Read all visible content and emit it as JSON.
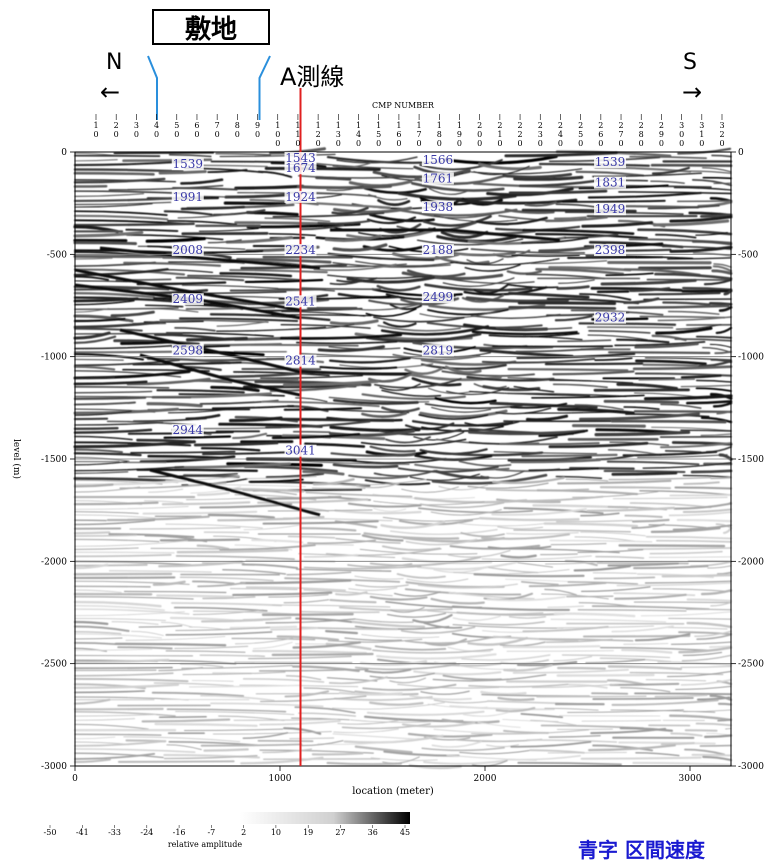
{
  "annotations": {
    "site_label": "敷地",
    "line_label": "A測線",
    "north_label": "N",
    "south_label": "S",
    "north_arrow": "←",
    "south_arrow": "→",
    "caption": "青字 区間速度"
  },
  "colors": {
    "site_marker": "#2a8fdc",
    "line_marker": "#e02020",
    "velocity_text": "#3a3aa8"
  },
  "chart_data": {
    "type": "heatmap",
    "top_axis_title": "CMP NUMBER",
    "top_axis_ticks": [
      "10",
      "20",
      "30",
      "40",
      "50",
      "60",
      "70",
      "80",
      "90",
      "100",
      "110",
      "120",
      "130",
      "140",
      "150",
      "160",
      "170",
      "180",
      "190",
      "200",
      "210",
      "220",
      "230",
      "240",
      "250",
      "260",
      "270",
      "280",
      "290",
      "300",
      "310",
      "320"
    ],
    "xlabel": "location (meter)",
    "ylabel": "level (m)",
    "xlim": [
      0,
      3200
    ],
    "ylim": [
      -3000,
      0
    ],
    "x_ticks": [
      0,
      1000,
      2000,
      3000
    ],
    "y_ticks": [
      0,
      -500,
      -1000,
      -1500,
      -2000,
      -2500,
      -3000
    ],
    "grid": true,
    "site_range_m": [
      400,
      900
    ],
    "line_position_m": 1100,
    "interval_velocities": [
      {
        "x": 550,
        "y": -30,
        "label": "1539"
      },
      {
        "x": 1100,
        "y": 0,
        "label": "1543"
      },
      {
        "x": 1100,
        "y": -50,
        "label": "1674"
      },
      {
        "x": 1770,
        "y": -10,
        "label": "1566"
      },
      {
        "x": 2610,
        "y": -20,
        "label": "1539"
      },
      {
        "x": 1770,
        "y": -100,
        "label": "1761"
      },
      {
        "x": 2610,
        "y": -120,
        "label": "1831"
      },
      {
        "x": 550,
        "y": -190,
        "label": "1991"
      },
      {
        "x": 1100,
        "y": -190,
        "label": "1924"
      },
      {
        "x": 1770,
        "y": -240,
        "label": "1938"
      },
      {
        "x": 2610,
        "y": -250,
        "label": "1949"
      },
      {
        "x": 550,
        "y": -450,
        "label": "2008"
      },
      {
        "x": 1100,
        "y": -450,
        "label": "2234"
      },
      {
        "x": 1770,
        "y": -450,
        "label": "2188"
      },
      {
        "x": 2610,
        "y": -450,
        "label": "2398"
      },
      {
        "x": 550,
        "y": -690,
        "label": "2409"
      },
      {
        "x": 1100,
        "y": -700,
        "label": "2541"
      },
      {
        "x": 1770,
        "y": -680,
        "label": "2499"
      },
      {
        "x": 2610,
        "y": -780,
        "label": "2932"
      },
      {
        "x": 550,
        "y": -940,
        "label": "2598"
      },
      {
        "x": 1100,
        "y": -990,
        "label": "2814"
      },
      {
        "x": 1770,
        "y": -940,
        "label": "2819"
      },
      {
        "x": 550,
        "y": -1330,
        "label": "2944"
      },
      {
        "x": 1100,
        "y": -1430,
        "label": "3041"
      }
    ],
    "colorbar": {
      "label": "relative amplitude",
      "ticks": [
        "-50",
        "-41",
        "-33",
        "-24",
        "-16",
        "-7",
        "2",
        "10",
        "19",
        "27",
        "36",
        "45"
      ],
      "range": [
        -50,
        45
      ],
      "colors": [
        "#ffffff",
        "#000000"
      ]
    }
  }
}
